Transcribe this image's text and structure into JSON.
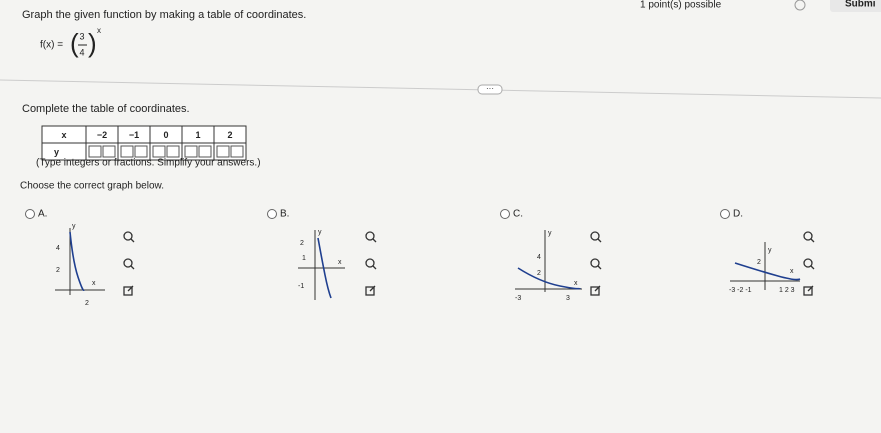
{
  "header": {
    "status": "1 point(s) possible",
    "submit": "Submi"
  },
  "question": {
    "prompt": "Graph the given function by making a table of coordinates.",
    "function": {
      "lhs": "f(x) =",
      "numerator": "3",
      "denominator": "4",
      "exponent": "x"
    }
  },
  "table_section": {
    "instruction": "Complete the table of coordinates.",
    "table": {
      "rows": [
        [
          "x",
          "−2",
          "−1",
          "0",
          "1",
          "2"
        ],
        [
          "y"
        ]
      ]
    },
    "hint": "(Type integers or fractions. Simplify your answers.)"
  },
  "choice": {
    "prompt": "Choose the correct graph below.",
    "options": [
      {
        "letter": "A.",
        "labels": [
          "y",
          "4",
          "2",
          "x",
          "2"
        ]
      },
      {
        "letter": "B.",
        "labels": [
          "y",
          "2",
          "1",
          "x",
          "-1"
        ]
      },
      {
        "letter": "C.",
        "labels": [
          "y",
          "4",
          "2",
          "x",
          "-3",
          "3"
        ]
      },
      {
        "letter": "D.",
        "labels": [
          "y",
          "2",
          "x",
          "-3 -2 -1",
          "1 2 3"
        ]
      }
    ]
  }
}
